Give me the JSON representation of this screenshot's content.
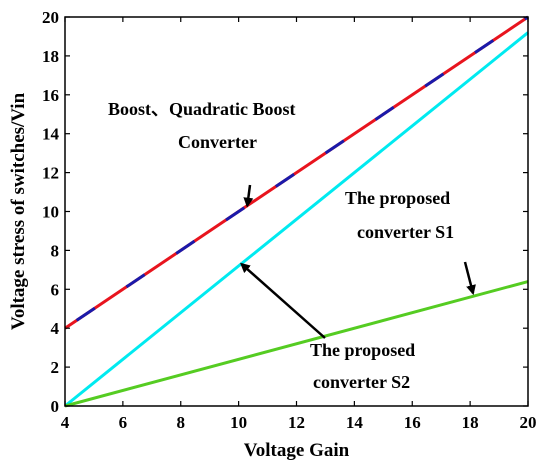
{
  "chart_data": {
    "type": "line",
    "xlabel": "Voltage Gain",
    "ylabel": "Voltage stress of switches/Vin",
    "xlim": [
      4,
      20
    ],
    "ylim": [
      0,
      20
    ],
    "xticks": [
      4,
      6,
      8,
      10,
      12,
      14,
      16,
      18,
      20
    ],
    "yticks": [
      0,
      2,
      4,
      6,
      8,
      10,
      12,
      14,
      16,
      18,
      20
    ],
    "grid": false,
    "series": [
      {
        "key": "boost",
        "x": [
          4,
          20
        ],
        "y": [
          4,
          20
        ],
        "color": "#e8141e",
        "alt_color": "#1a1aaa"
      },
      {
        "key": "s2",
        "x": [
          4,
          20
        ],
        "y": [
          0,
          19.2
        ],
        "color": "#00eaf0"
      },
      {
        "key": "s1",
        "x": [
          4,
          20
        ],
        "y": [
          0,
          6.4
        ],
        "color": "#55cc22"
      }
    ],
    "annotations": [
      {
        "key": "boost",
        "lines": [
          "Boost、Quadratic Boost",
          "Converter"
        ],
        "arrow_to": [
          10.3,
          10.3
        ]
      },
      {
        "key": "s1",
        "lines": [
          "The proposed",
          "converter S1"
        ],
        "arrow_to": [
          18.1,
          5.8
        ]
      },
      {
        "key": "s2",
        "lines": [
          "The proposed",
          "converter S2"
        ],
        "arrow_to": [
          10.1,
          7.3
        ]
      }
    ]
  }
}
